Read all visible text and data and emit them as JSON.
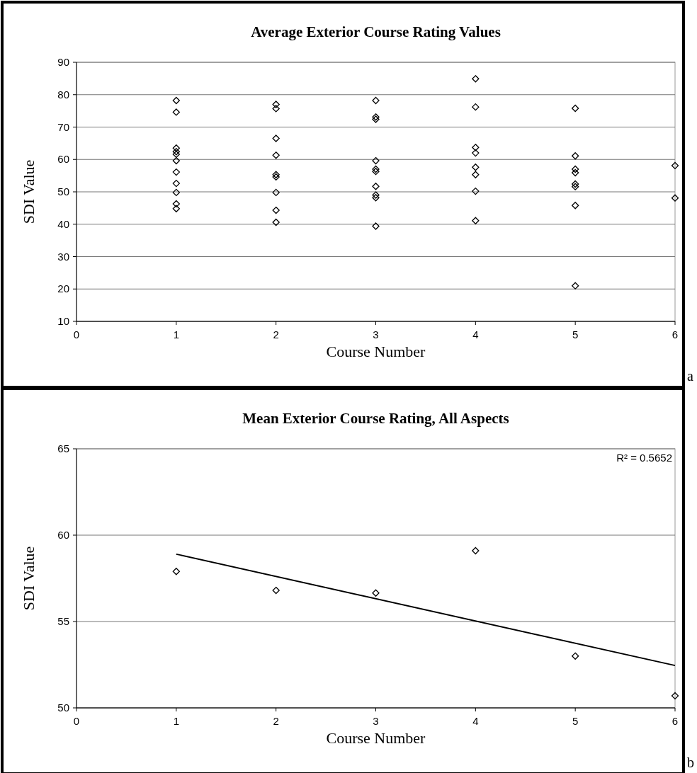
{
  "chart_data": [
    {
      "type": "scatter",
      "title": "Average Exterior Course Rating Values",
      "xlabel": "Course Number",
      "ylabel": "SDI Value",
      "x": [
        1,
        1,
        1,
        1,
        1,
        1,
        1,
        1,
        1,
        1,
        1,
        2,
        2,
        2,
        2,
        2,
        2,
        2,
        2,
        2,
        3,
        3,
        3,
        3,
        3,
        3,
        3,
        3,
        3,
        3,
        4,
        4,
        4,
        4,
        4,
        4,
        4,
        4,
        5,
        5,
        5,
        5,
        5,
        5,
        5,
        5,
        6,
        6
      ],
      "values": [
        78.2,
        74.6,
        63.5,
        62.4,
        61.6,
        59.6,
        56.1,
        52.6,
        49.8,
        46.3,
        44.8,
        77.0,
        75.7,
        66.5,
        61.3,
        55.3,
        54.6,
        49.8,
        44.3,
        40.6,
        78.2,
        73.1,
        72.4,
        59.6,
        57.0,
        56.3,
        51.7,
        49.0,
        48.2,
        39.4,
        84.9,
        76.2,
        63.7,
        62.0,
        57.6,
        55.3,
        50.2,
        41.1,
        75.8,
        61.1,
        57.0,
        55.9,
        52.4,
        51.6,
        45.8,
        21.0,
        58.1,
        48.1
      ],
      "color": "#000000",
      "marker": "diamond",
      "grid": "y",
      "xlim": [
        0,
        6
      ],
      "xticks": [
        0,
        1,
        2,
        3,
        4,
        5,
        6
      ],
      "ylim": [
        10,
        90
      ],
      "yticks": [
        10,
        20,
        30,
        40,
        50,
        60,
        70,
        80,
        90
      ],
      "annotations": [
        "a"
      ]
    },
    {
      "type": "scatter",
      "title": "Mean Exterior Course Rating, All Aspects",
      "xlabel": "Course Number",
      "ylabel": "SDI Value",
      "series": [
        {
          "color": "#000000",
          "marker": "diamond",
          "x": [
            1,
            2,
            3,
            4,
            5,
            6
          ],
          "values": [
            57.9,
            56.8,
            56.65,
            59.1,
            53.0,
            50.7
          ]
        },
        {
          "type": "line",
          "marker": "none",
          "color": "#000000",
          "x": [
            1,
            6
          ],
          "values": [
            58.9,
            52.45
          ]
        }
      ],
      "grid": "y",
      "xlim": [
        0,
        6
      ],
      "xticks": [
        0,
        1,
        2,
        3,
        4,
        5,
        6
      ],
      "ylim": [
        50,
        65
      ],
      "yticks": [
        50,
        55,
        60,
        65
      ],
      "annotations": [
        "R² = 0.5652",
        "b"
      ]
    }
  ]
}
